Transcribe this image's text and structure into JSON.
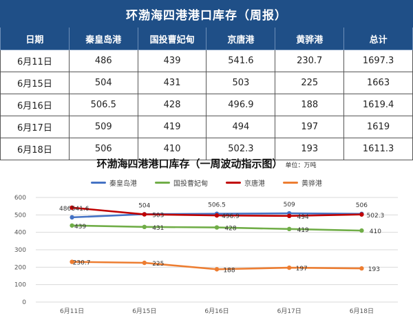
{
  "table": {
    "title": "环渤海四港港口库存（周报）",
    "headers": [
      "日期",
      "秦皇岛港",
      "国投曹妃甸",
      "京唐港",
      "黄骅港",
      "总计"
    ],
    "rows": [
      [
        "6月11日",
        "486",
        "439",
        "541.6",
        "230.7",
        "1697.3"
      ],
      [
        "6月15日",
        "504",
        "431",
        "503",
        "225",
        "1663"
      ],
      [
        "6月16日",
        "506.5",
        "428",
        "496.9",
        "188",
        "1619.4"
      ],
      [
        "6月17日",
        "509",
        "419",
        "494",
        "197",
        "1619"
      ],
      [
        "6月18日",
        "506",
        "410",
        "502.3",
        "193",
        "1611.3"
      ]
    ]
  },
  "chart_data": {
    "type": "line",
    "title": "环渤海四港港口库存（一周波动指示图）",
    "unit": "单位：万吨",
    "categories": [
      "6月11日",
      "6月15日",
      "6月16日",
      "6月17日",
      "6月18日"
    ],
    "ylim": [
      0,
      600
    ],
    "yticks": [
      0,
      100,
      200,
      300,
      400,
      500,
      600
    ],
    "grid": true,
    "legend_position": "top",
    "series": [
      {
        "name": "秦皇岛港",
        "color": "#4472c4",
        "values": [
          486,
          504,
          506.5,
          509,
          506
        ],
        "labels": [
          "486",
          "504",
          "506.5",
          "509",
          "506"
        ]
      },
      {
        "name": "国投曹妃甸",
        "color": "#70ad47",
        "values": [
          439,
          431,
          428,
          419,
          410
        ],
        "labels": [
          "439",
          "431",
          "428",
          "419",
          "410"
        ]
      },
      {
        "name": "京唐港",
        "color": "#c00000",
        "values": [
          541.6,
          503,
          496.9,
          494,
          502.3
        ],
        "labels": [
          "541.6",
          "503",
          "496.9",
          "494",
          "502.3"
        ]
      },
      {
        "name": "黄骅港",
        "color": "#ed7d31",
        "values": [
          230.7,
          225,
          188,
          197,
          193
        ],
        "labels": [
          "230.7",
          "225",
          "188",
          "197",
          "193"
        ]
      }
    ]
  }
}
